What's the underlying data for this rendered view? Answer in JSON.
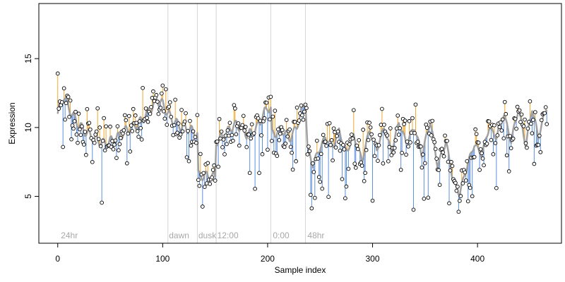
{
  "chart_data": {
    "type": "scatter",
    "title": "",
    "xlabel": "Sample index",
    "ylabel": "Expression",
    "xlim": [
      -18,
      480
    ],
    "ylim": [
      1.6,
      19
    ],
    "x_ticks": [
      0,
      100,
      200,
      300,
      400
    ],
    "y_ticks": [
      5,
      10,
      15
    ],
    "grid": false,
    "legend": "none",
    "colors": {
      "fit_line": "#a0a0a0",
      "residual_above": "#f0a830",
      "residual_below": "#5b8fdc",
      "point_fill": "#ffffff",
      "point_stroke": "#000000",
      "vline": "#d4d4d4",
      "annotation": "#a8a8a8"
    },
    "annotations": [
      {
        "label": "24hr",
        "x": 3
      },
      {
        "label": "dawn",
        "x": 106
      },
      {
        "label": "dusk",
        "x": 134
      },
      {
        "label": "12:00",
        "x": 152
      },
      {
        "label": "0:00",
        "x": 205
      },
      {
        "label": "48hr",
        "x": 238
      }
    ],
    "vlines": [
      105,
      133,
      151,
      203,
      236
    ],
    "fit_anchors": [
      [
        0,
        11.0
      ],
      [
        3,
        11.8
      ],
      [
        6,
        12.3
      ],
      [
        10,
        11.5
      ],
      [
        15,
        10.8
      ],
      [
        20,
        10.2
      ],
      [
        25,
        9.8
      ],
      [
        30,
        9.5
      ],
      [
        35,
        9.2
      ],
      [
        40,
        9.0
      ],
      [
        45,
        8.8
      ],
      [
        50,
        9.0
      ],
      [
        55,
        9.2
      ],
      [
        60,
        9.4
      ],
      [
        65,
        9.8
      ],
      [
        70,
        10.0
      ],
      [
        75,
        10.2
      ],
      [
        80,
        10.5
      ],
      [
        85,
        11.0
      ],
      [
        90,
        11.5
      ],
      [
        95,
        12.0
      ],
      [
        100,
        11.7
      ],
      [
        105,
        11.0
      ],
      [
        110,
        10.5
      ],
      [
        115,
        10.2
      ],
      [
        120,
        10.0
      ],
      [
        125,
        9.9
      ],
      [
        130,
        9.7
      ],
      [
        133,
        9.5
      ],
      [
        134,
        6.5
      ],
      [
        140,
        6.5
      ],
      [
        150,
        6.4
      ],
      [
        151,
        9.0
      ],
      [
        155,
        9.2
      ],
      [
        160,
        9.5
      ],
      [
        165,
        10.0
      ],
      [
        170,
        10.2
      ],
      [
        175,
        10.0
      ],
      [
        180,
        9.5
      ],
      [
        185,
        9.6
      ],
      [
        190,
        10.0
      ],
      [
        195,
        10.8
      ],
      [
        200,
        11.5
      ],
      [
        203,
        11.3
      ],
      [
        204,
        9.5
      ],
      [
        210,
        9.7
      ],
      [
        215,
        9.8
      ],
      [
        220,
        9.2
      ],
      [
        225,
        9.6
      ],
      [
        230,
        10.6
      ],
      [
        235,
        11.8
      ],
      [
        236,
        12.0
      ],
      [
        238,
        8.5
      ],
      [
        243,
        7.3
      ],
      [
        248,
        8.2
      ],
      [
        255,
        9.3
      ],
      [
        262,
        8.6
      ],
      [
        268,
        9.8
      ],
      [
        275,
        8.2
      ],
      [
        282,
        9.4
      ],
      [
        290,
        7.6
      ],
      [
        297,
        9.8
      ],
      [
        304,
        8.4
      ],
      [
        311,
        10.0
      ],
      [
        318,
        8.2
      ],
      [
        325,
        10.4
      ],
      [
        332,
        8.9
      ],
      [
        340,
        10.0
      ],
      [
        347,
        8.0
      ],
      [
        355,
        10.5
      ],
      [
        362,
        7.2
      ],
      [
        370,
        9.0
      ],
      [
        377,
        6.0
      ],
      [
        383,
        5.2
      ],
      [
        390,
        7.2
      ],
      [
        397,
        8.8
      ],
      [
        404,
        8.0
      ],
      [
        411,
        10.0
      ],
      [
        418,
        9.3
      ],
      [
        425,
        11.0
      ],
      [
        432,
        9.0
      ],
      [
        439,
        11.4
      ],
      [
        446,
        8.7
      ],
      [
        452,
        11.4
      ],
      [
        458,
        9.3
      ],
      [
        464,
        11.0
      ],
      [
        466,
        11.5
      ]
    ],
    "point_seed": 7,
    "n_points": 467
  }
}
